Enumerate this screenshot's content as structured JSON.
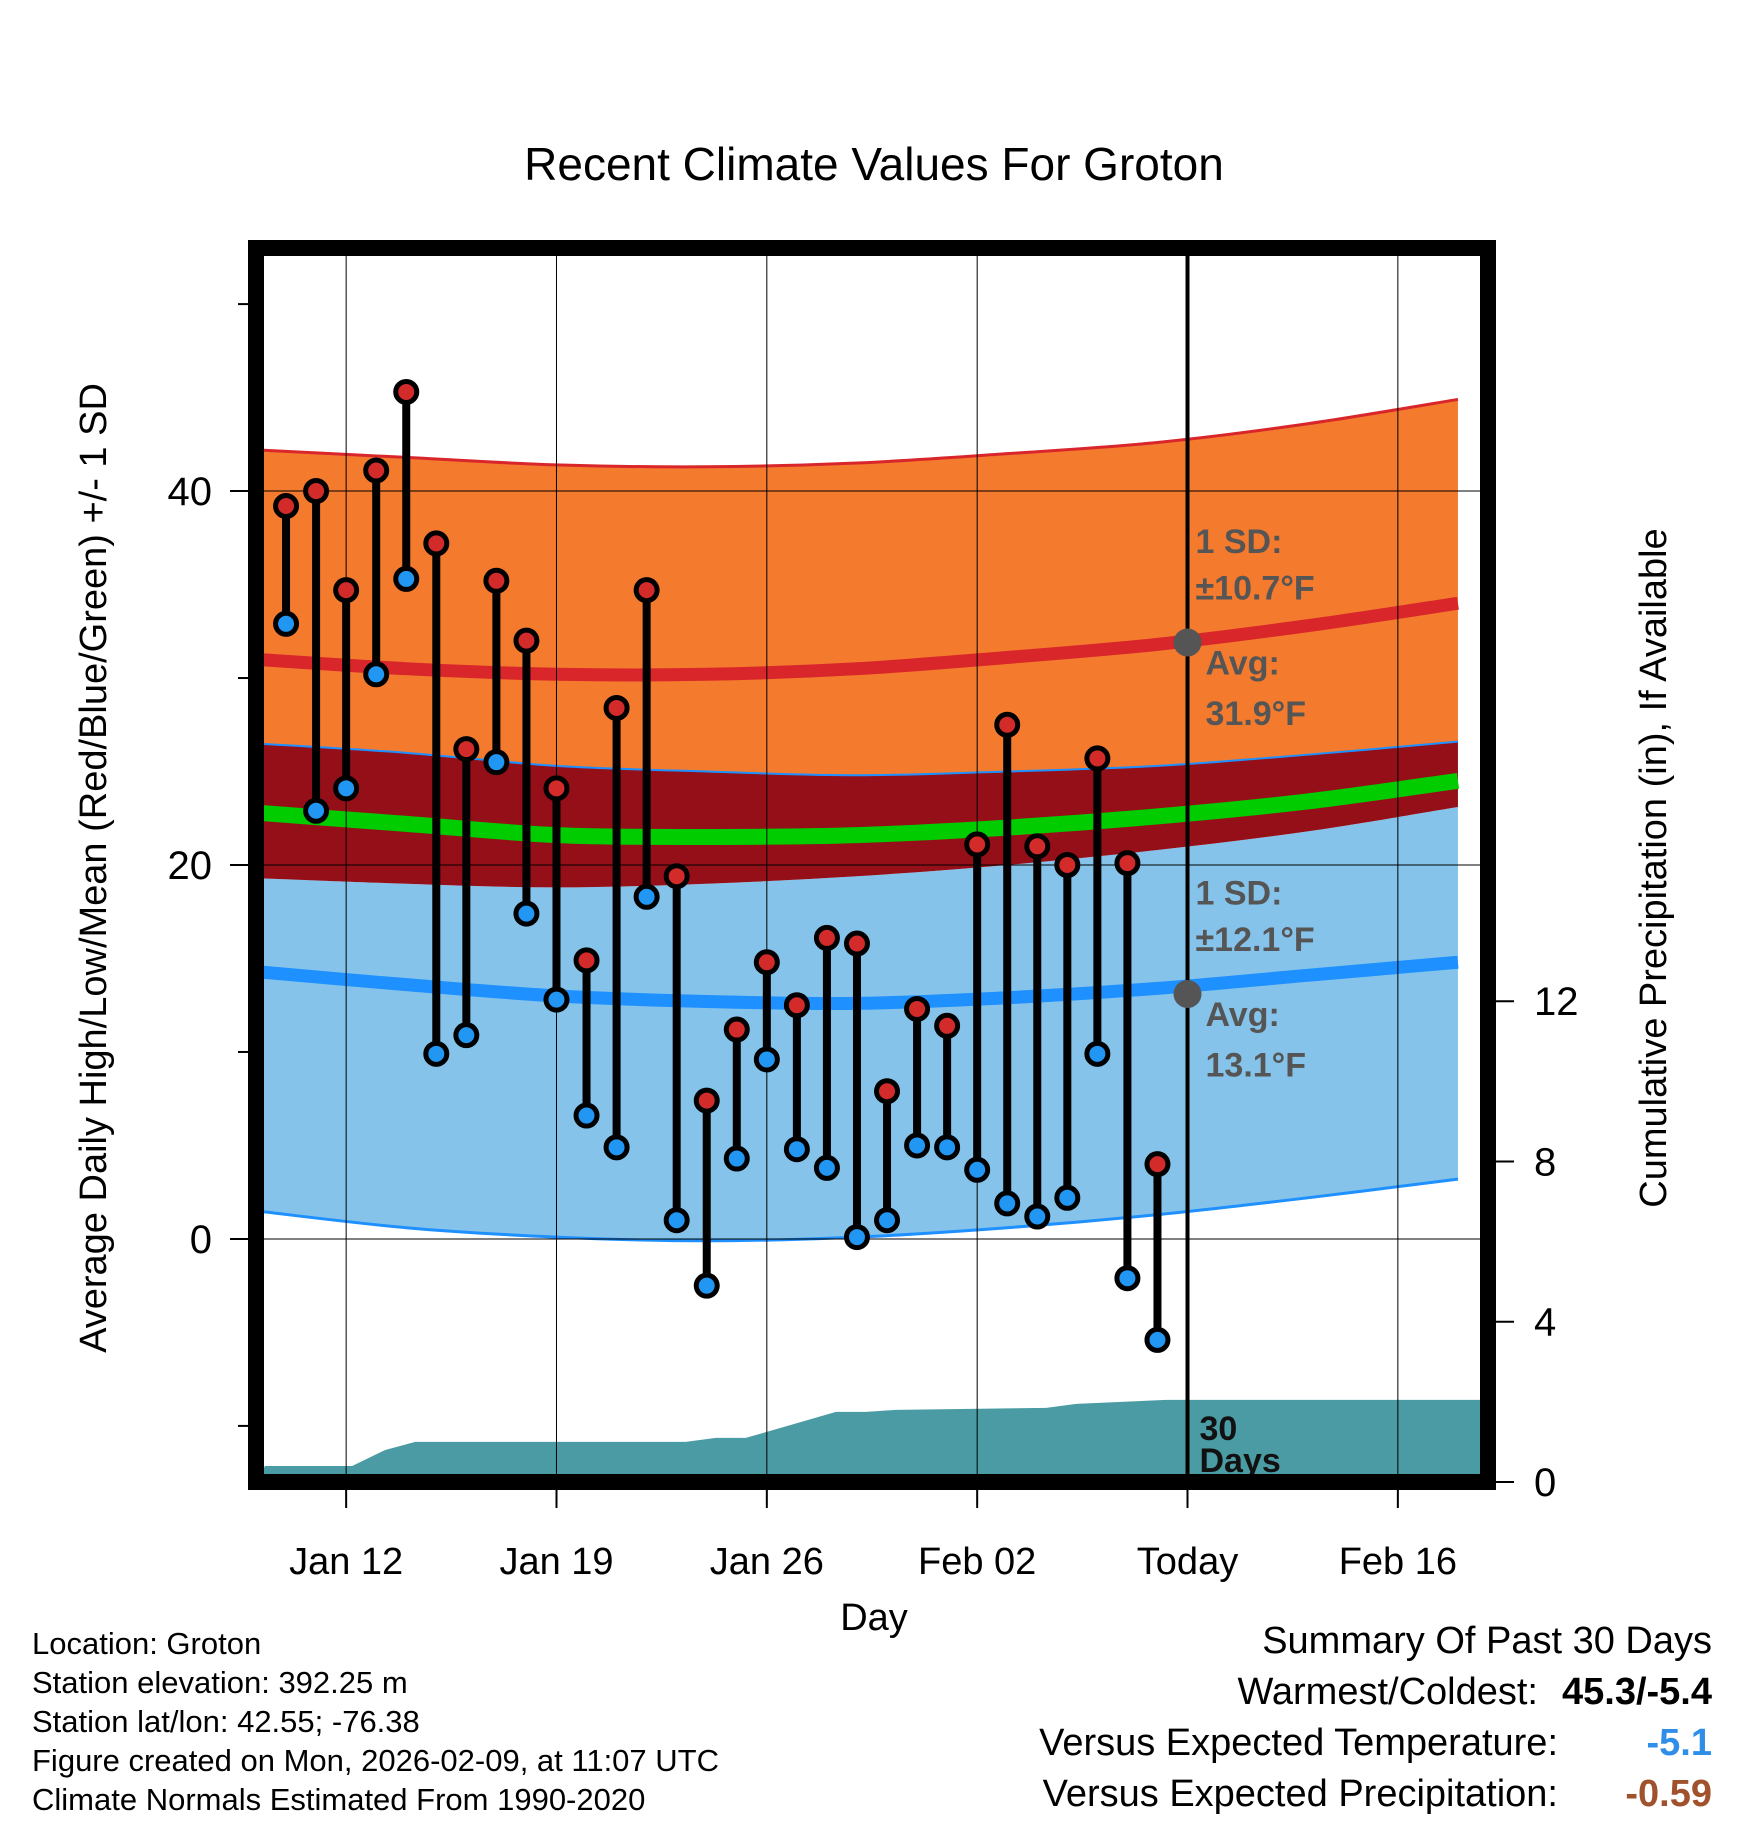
{
  "chart_data": {
    "type": "climate-daily-high-low",
    "title": "Recent Climate Values For Groton",
    "xlabel": "Day",
    "ylabel_left": "Average Daily High/Low/Mean (Red/Blue/Green) +/- 1 SD",
    "ylabel_right": "Cumulative Precipitation (in), If Available",
    "x_tick_labels": [
      "Jan 12",
      "Jan 19",
      "Jan 26",
      "Feb 02",
      "Today",
      "Feb 16"
    ],
    "x_tick_days": [
      3,
      10,
      17,
      24,
      31,
      38
    ],
    "x_range_days": [
      0,
      41
    ],
    "today_day": 31,
    "y_left_range": [
      -13,
      53
    ],
    "y_left_ticks": [
      0,
      20,
      40
    ],
    "y_left_minor_ticks": [
      -10,
      10,
      30,
      50
    ],
    "y_right_range": [
      0,
      30.8
    ],
    "y_right_ticks": [
      0,
      4,
      8,
      12
    ],
    "days": [
      1,
      2,
      3,
      4,
      5,
      6,
      7,
      8,
      9,
      10,
      11,
      12,
      13,
      14,
      15,
      16,
      17,
      18,
      19,
      20,
      21,
      22,
      23,
      24,
      25,
      26,
      27,
      28,
      29,
      30
    ],
    "highs": [
      39.2,
      40.0,
      34.7,
      41.1,
      45.3,
      37.2,
      26.2,
      35.2,
      32.0,
      24.1,
      14.9,
      28.4,
      34.7,
      19.4,
      7.4,
      11.2,
      14.8,
      12.5,
      16.1,
      15.8,
      7.9,
      12.3,
      11.4,
      21.1,
      27.5,
      21.0,
      20.0,
      25.7,
      20.1,
      4.0
    ],
    "lows": [
      32.9,
      22.9,
      24.1,
      30.2,
      35.3,
      9.9,
      10.9,
      25.5,
      17.4,
      12.8,
      6.6,
      4.9,
      18.3,
      1.0,
      -2.5,
      4.3,
      9.6,
      4.8,
      3.8,
      0.1,
      1.0,
      5.0,
      4.9,
      3.7,
      1.9,
      1.2,
      2.2,
      9.9,
      -2.1,
      -5.4
    ],
    "normal_days": [
      0,
      5,
      10,
      15,
      20,
      25,
      30,
      35,
      40
    ],
    "normal_high_avg": [
      31.0,
      30.5,
      30.2,
      30.2,
      30.5,
      31.1,
      31.8,
      32.8,
      34.0
    ],
    "normal_high_upper": [
      42.2,
      41.8,
      41.4,
      41.3,
      41.5,
      42.0,
      42.6,
      43.6,
      44.9
    ],
    "normal_high_lower": [
      26.5,
      26.0,
      25.3,
      25.0,
      24.8,
      25.0,
      25.3,
      25.9,
      26.6
    ],
    "normal_mean": [
      22.8,
      22.2,
      21.6,
      21.5,
      21.6,
      22.0,
      22.6,
      23.4,
      24.5
    ],
    "normal_low_avg": [
      14.3,
      13.6,
      13.0,
      12.7,
      12.6,
      12.9,
      13.4,
      14.1,
      14.8
    ],
    "normal_low_upper": [
      19.3,
      19.0,
      18.8,
      19.0,
      19.4,
      20.0,
      20.8,
      21.8,
      23.1
    ],
    "normal_low_lower": [
      1.5,
      0.6,
      0.1,
      -0.1,
      0.1,
      0.6,
      1.3,
      2.2,
      3.2
    ],
    "precip_days": [
      0,
      0.3,
      3.2,
      4.3,
      5.3,
      14.3,
      15.3,
      16.3,
      19.3,
      20.3,
      21.3,
      26.3,
      27.3,
      30.3,
      41
    ],
    "precip_cum": [
      0,
      0.4,
      0.4,
      0.8,
      1.0,
      1.0,
      1.1,
      1.1,
      1.75,
      1.75,
      1.8,
      1.85,
      1.95,
      2.05,
      2.05
    ],
    "annotations": {
      "high_sd": "1 SD:",
      "high_sd_value": "±10.7°F",
      "high_avg": "Avg:",
      "high_avg_value": "31.9°F",
      "low_sd": "1 SD:",
      "low_sd_value": "±12.1°F",
      "low_avg": "Avg:",
      "low_avg_value": "13.1°F",
      "window_line1": "30",
      "window_line2": "Days"
    }
  },
  "footer": {
    "location": "Location: Groton",
    "elevation": "Station elevation: 392.25 m",
    "latlon": "Station lat/lon: 42.55; -76.38",
    "created": "Figure created on Mon, 2026-02-09, at 11:07 UTC",
    "normals": "Climate Normals Estimated From 1990-2020"
  },
  "summary": {
    "heading": "Summary Of Past 30 Days",
    "warm_cold_label": "Warmest/Coldest:",
    "warm_cold_value": "45.3/-5.4",
    "temp_label": "Versus Expected Temperature:",
    "temp_value": "-5.1",
    "precip_label": "Versus Expected Precipitation:",
    "precip_value": "-0.59"
  },
  "colors": {
    "high_band": "#f47a2e",
    "high_line": "#d8262a",
    "mean_band": "#940f18",
    "mean_line": "#00cc00",
    "low_band": "#85c3ea",
    "low_line": "#1e90ff",
    "precip": "#4a9ba3",
    "high_dot": "#d32a2a",
    "low_dot": "#2196f3",
    "annotation": "#555555",
    "temp_anomaly": "#2f8fe8",
    "precip_anomaly": "#a0522d"
  }
}
